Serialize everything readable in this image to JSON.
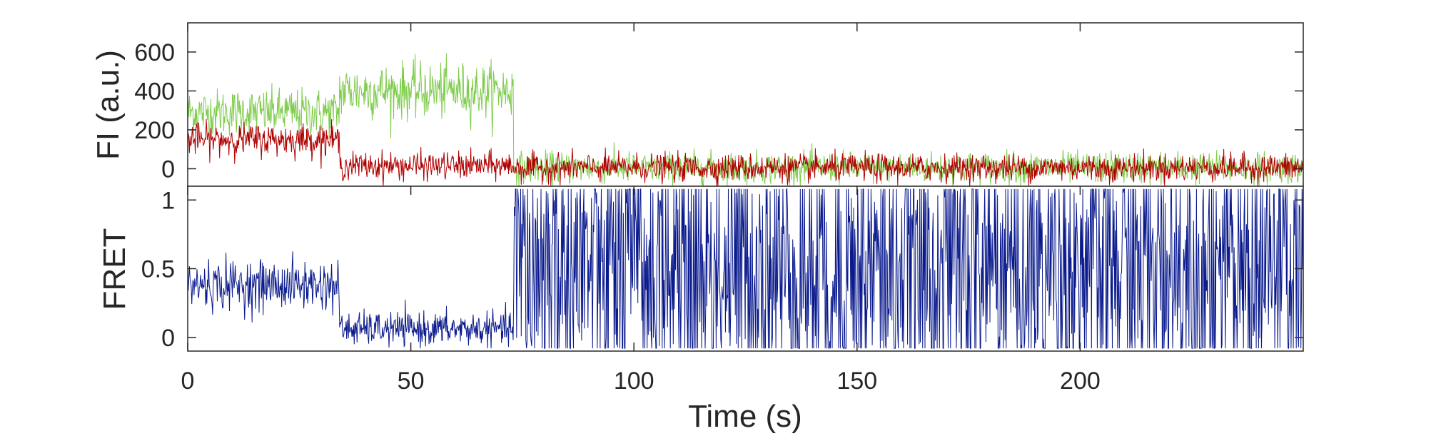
{
  "chart_data": [
    {
      "type": "line",
      "ylabel": "FI (a.u.)",
      "xlim": [
        0,
        250
      ],
      "ylim": [
        -90,
        750
      ],
      "yticks": [
        0,
        200,
        400,
        600
      ],
      "ytick_labels": [
        "0",
        "200",
        "400",
        "600"
      ],
      "grid": false,
      "series": [
        {
          "color": "#7fcc4c",
          "segments": [
            {
              "x_start": 0,
              "x_end": 34,
              "mean": 290,
              "noise": 60
            },
            {
              "x_start": 34,
              "x_end": 73,
              "mean": 400,
              "noise": 70
            },
            {
              "x_start": 73,
              "x_end": 250,
              "mean": 5,
              "noise": 40
            }
          ]
        },
        {
          "color": "#b00000",
          "segments": [
            {
              "x_start": 0,
              "x_end": 34,
              "mean": 150,
              "noise": 40
            },
            {
              "x_start": 34,
              "x_end": 73,
              "mean": 15,
              "noise": 35
            },
            {
              "x_start": 73,
              "x_end": 250,
              "mean": 5,
              "noise": 35
            }
          ]
        }
      ]
    },
    {
      "type": "line",
      "ylabel": "FRET",
      "xlabel": "Time (s)",
      "xlim": [
        0,
        250
      ],
      "ylim": [
        -0.1,
        1.1
      ],
      "xticks": [
        0,
        50,
        100,
        150,
        200
      ],
      "xtick_labels": [
        "0",
        "50",
        "100",
        "150",
        "200"
      ],
      "yticks": [
        0,
        0.5,
        1
      ],
      "ytick_labels": [
        "0",
        "0.5",
        "1"
      ],
      "grid": false,
      "series": [
        {
          "color": "#0a1a8c",
          "segments": [
            {
              "x_start": 0,
              "x_end": 34,
              "mean": 0.38,
              "noise": 0.09
            },
            {
              "x_start": 34,
              "x_end": 73,
              "mean": 0.06,
              "noise": 0.06
            },
            {
              "x_start": 73,
              "x_end": 250,
              "mean": 0.5,
              "noise": 0.6
            }
          ]
        }
      ]
    }
  ]
}
